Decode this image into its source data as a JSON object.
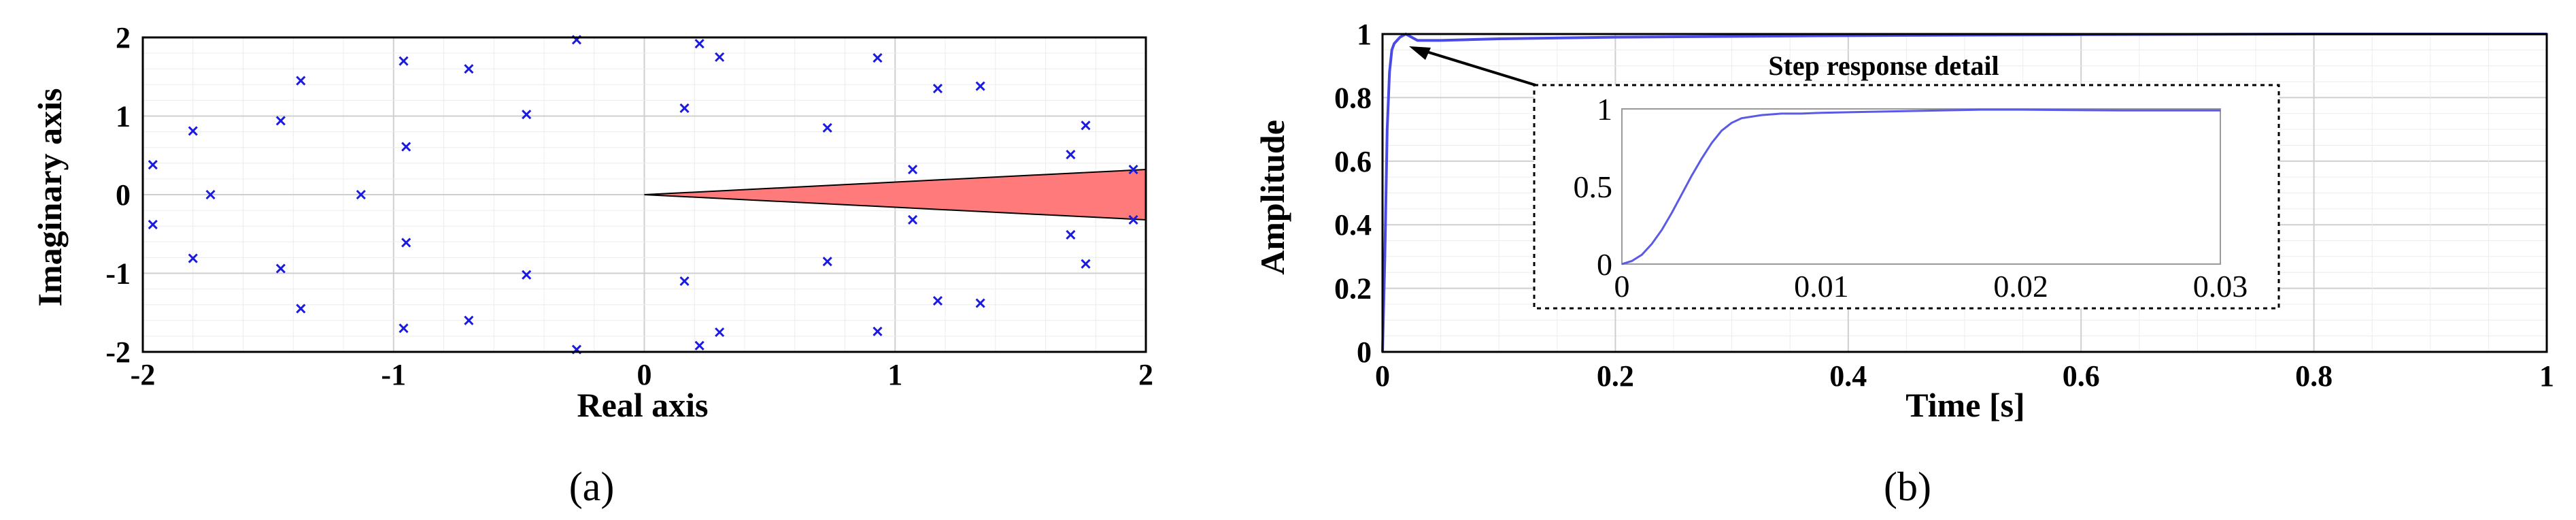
{
  "chart_data": [
    {
      "type": "scatter",
      "panel_label": "(a)",
      "xlabel": "Real axis",
      "ylabel": "Imaginary axis",
      "xlim": [
        -2,
        2
      ],
      "ylim": [
        -2,
        2
      ],
      "xticks": [
        "-2",
        "-1",
        "0",
        "1",
        "2"
      ],
      "yticks": [
        "2",
        "1",
        "0",
        "-1",
        "-2"
      ],
      "grid": true,
      "marker": "x",
      "marker_color": "#1a1ae0",
      "region_color": "#ff7b7b",
      "region_polygon": [
        [
          0,
          0
        ],
        [
          2,
          0.32
        ],
        [
          2,
          -0.32
        ]
      ],
      "points": [
        [
          -1.96,
          0.38
        ],
        [
          -1.96,
          -0.38
        ],
        [
          -1.8,
          0.81
        ],
        [
          -1.8,
          -0.81
        ],
        [
          -1.73,
          0
        ],
        [
          -1.45,
          0.94
        ],
        [
          -1.45,
          -0.94
        ],
        [
          -1.37,
          1.45
        ],
        [
          -1.37,
          -1.45
        ],
        [
          -1.13,
          0
        ],
        [
          -0.96,
          1.7
        ],
        [
          -0.96,
          -1.7
        ],
        [
          -0.95,
          0.61
        ],
        [
          -0.95,
          -0.61
        ],
        [
          -0.7,
          1.6
        ],
        [
          -0.7,
          -1.6
        ],
        [
          -0.47,
          1.02
        ],
        [
          -0.47,
          -1.02
        ],
        [
          -0.27,
          1.97
        ],
        [
          -0.27,
          -1.97
        ],
        [
          0.16,
          1.1
        ],
        [
          0.16,
          -1.1
        ],
        [
          0.22,
          1.92
        ],
        [
          0.22,
          -1.92
        ],
        [
          0.3,
          1.75
        ],
        [
          0.3,
          -1.75
        ],
        [
          0.73,
          0.85
        ],
        [
          0.73,
          -0.85
        ],
        [
          0.93,
          1.74
        ],
        [
          0.93,
          -1.74
        ],
        [
          1.07,
          0.32
        ],
        [
          1.07,
          -0.32
        ],
        [
          1.17,
          1.35
        ],
        [
          1.17,
          -1.35
        ],
        [
          1.34,
          1.38
        ],
        [
          1.34,
          -1.38
        ],
        [
          1.7,
          0.51
        ],
        [
          1.7,
          -0.51
        ],
        [
          1.76,
          0.88
        ],
        [
          1.76,
          -0.88
        ],
        [
          1.95,
          0.32
        ],
        [
          1.95,
          -0.32
        ]
      ]
    },
    {
      "type": "line",
      "panel_label": "(b)",
      "xlabel": "Time [s]",
      "ylabel": "Amplitude",
      "xlim": [
        0,
        1
      ],
      "ylim": [
        0,
        1
      ],
      "xticks": [
        "0",
        "0.2",
        "0.4",
        "0.6",
        "0.8",
        "1"
      ],
      "yticks": [
        "1",
        "0.8",
        "0.6",
        "0.4",
        "0.2",
        "0"
      ],
      "grid": true,
      "line_color": "#4a4ae6",
      "x": [
        0,
        0.002,
        0.004,
        0.006,
        0.008,
        0.01,
        0.015,
        0.02,
        0.03,
        0.05,
        0.1,
        0.2,
        0.4,
        0.6,
        0.8,
        1.0
      ],
      "y": [
        0,
        0.3,
        0.7,
        0.88,
        0.95,
        0.97,
        0.99,
        1.0,
        0.98,
        0.98,
        0.985,
        0.99,
        0.995,
        0.998,
        1.0,
        1.0
      ],
      "inset": {
        "title": "Step response detail",
        "xlim": [
          0,
          0.03
        ],
        "ylim": [
          0,
          1
        ],
        "xticks": [
          "0",
          "0.01",
          "0.02",
          "0.03"
        ],
        "yticks": [
          "1",
          "0.5",
          "0"
        ],
        "x": [
          0,
          0.0005,
          0.001,
          0.0015,
          0.002,
          0.0025,
          0.003,
          0.0035,
          0.004,
          0.0045,
          0.005,
          0.0055,
          0.006,
          0.007,
          0.008,
          0.009,
          0.01,
          0.012,
          0.014,
          0.016,
          0.018,
          0.02,
          0.025,
          0.03
        ],
        "y": [
          0,
          0.02,
          0.06,
          0.13,
          0.22,
          0.33,
          0.45,
          0.57,
          0.68,
          0.78,
          0.86,
          0.91,
          0.94,
          0.96,
          0.97,
          0.97,
          0.975,
          0.98,
          0.985,
          0.99,
          0.995,
          0.995,
          0.99,
          0.99
        ]
      }
    }
  ]
}
